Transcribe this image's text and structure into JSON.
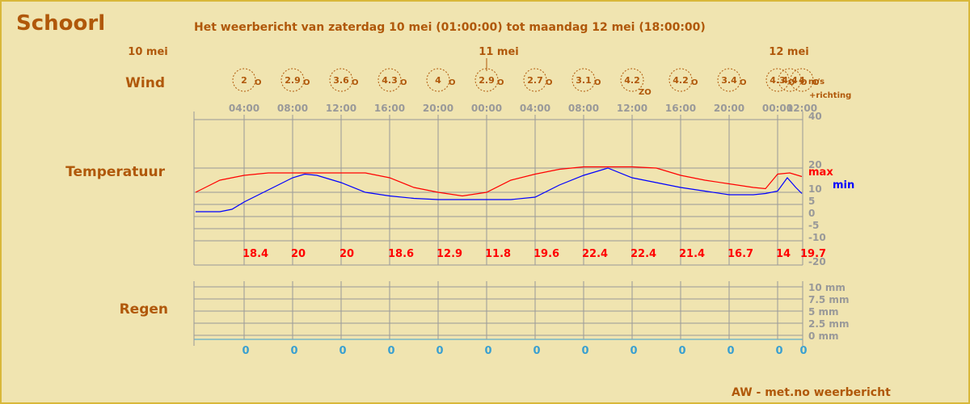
{
  "header": {
    "place": "Schoorl",
    "subtitle": "Het weerbericht van zaterdag 10 mei (01:00:00) tot maandag 12 mei (18:00:00)"
  },
  "footer": "AW - met.no weerbericht",
  "colors": {
    "accent": "#b0580a",
    "max": "#ff0000",
    "min": "#0000ff",
    "rain": "#3aa0d0",
    "grid": "#999999"
  },
  "chart_data": {
    "type": "line",
    "rows": {
      "wind": "Wind",
      "temperature": "Temperatuur",
      "rain": "Regen"
    },
    "day_labels": [
      {
        "label": "10 mei",
        "hour": 0
      },
      {
        "label": "11 mei",
        "hour": 24
      },
      {
        "label": "12 mei",
        "hour": 48
      }
    ],
    "time_ticks": [
      {
        "label": "04:00",
        "hour": 4
      },
      {
        "label": "08:00",
        "hour": 8
      },
      {
        "label": "12:00",
        "hour": 12
      },
      {
        "label": "16:00",
        "hour": 16
      },
      {
        "label": "20:00",
        "hour": 20
      },
      {
        "label": "00:00",
        "hour": 24
      },
      {
        "label": "04:00",
        "hour": 28
      },
      {
        "label": "08:00",
        "hour": 32
      },
      {
        "label": "12:00",
        "hour": 36
      },
      {
        "label": "16:00",
        "hour": 40
      },
      {
        "label": "20:00",
        "hour": 44
      },
      {
        "label": "00:00",
        "hour": 48
      },
      {
        "label": "12:00",
        "hour": 50
      }
    ],
    "wind": {
      "unit_label": "m/s",
      "direction_label": "+richting",
      "points": [
        {
          "hour": 4,
          "speed": "2",
          "dir": "O"
        },
        {
          "hour": 8,
          "speed": "2.9",
          "dir": "O"
        },
        {
          "hour": 12,
          "speed": "3.6",
          "dir": "O"
        },
        {
          "hour": 16,
          "speed": "4.3",
          "dir": "O"
        },
        {
          "hour": 20,
          "speed": "4",
          "dir": "O"
        },
        {
          "hour": 24,
          "speed": "2.9",
          "dir": "O"
        },
        {
          "hour": 28,
          "speed": "2.7",
          "dir": "O"
        },
        {
          "hour": 32,
          "speed": "3.1",
          "dir": "O"
        },
        {
          "hour": 36,
          "speed": "4.2",
          "dir": "ZO"
        },
        {
          "hour": 40,
          "speed": "4.2",
          "dir": "O"
        },
        {
          "hour": 44,
          "speed": "3.4",
          "dir": "O"
        },
        {
          "hour": 48,
          "speed": "4.3",
          "dir": "O"
        },
        {
          "hour": 49,
          "speed": "4.4",
          "dir": "O"
        },
        {
          "hour": 50,
          "speed": "4",
          "dir": "O"
        }
      ]
    },
    "temperature": {
      "ylim": [
        -20,
        40
      ],
      "y_ticks": [
        40,
        20,
        10,
        5,
        0,
        -5,
        -10,
        -20
      ],
      "legend": {
        "max": "max",
        "min": "min"
      },
      "max_series": {
        "name": "max",
        "x": [
          0,
          2,
          4,
          6,
          8,
          10,
          12,
          14,
          16,
          18,
          20,
          22,
          24,
          26,
          28,
          30,
          32,
          34,
          36,
          38,
          40,
          42,
          44,
          46,
          47,
          48,
          49,
          50
        ],
        "values": [
          10,
          15,
          17,
          18,
          18,
          18,
          18,
          18,
          16,
          12,
          10,
          8.5,
          10,
          15,
          17.5,
          19.5,
          20.5,
          20.5,
          20.5,
          20,
          17,
          15,
          13.5,
          12,
          11.5,
          17.5,
          18,
          16.5
        ]
      },
      "min_series": {
        "name": "min",
        "x": [
          0,
          2,
          3,
          4,
          6,
          8,
          9,
          10,
          12,
          14,
          16,
          18,
          20,
          22,
          24,
          26,
          28,
          30,
          32,
          34,
          36,
          38,
          40,
          42,
          44,
          46,
          47,
          48,
          48.8,
          49.5,
          50
        ],
        "values": [
          2,
          2,
          3,
          6,
          11,
          16,
          17.5,
          17,
          14,
          10,
          8.5,
          7.5,
          7,
          7,
          7,
          7,
          8,
          13,
          17,
          20,
          16,
          14,
          12,
          10.5,
          9,
          9,
          9.5,
          10.5,
          16,
          12,
          9.5
        ]
      },
      "max_labels": [
        {
          "hour": 4,
          "value": "18.4"
        },
        {
          "hour": 8,
          "value": "20"
        },
        {
          "hour": 12,
          "value": "20"
        },
        {
          "hour": 16,
          "value": "18.6"
        },
        {
          "hour": 20,
          "value": "12.9"
        },
        {
          "hour": 24,
          "value": "11.8"
        },
        {
          "hour": 28,
          "value": "19.6"
        },
        {
          "hour": 32,
          "value": "22.4"
        },
        {
          "hour": 36,
          "value": "22.4"
        },
        {
          "hour": 40,
          "value": "21.4"
        },
        {
          "hour": 44,
          "value": "16.7"
        },
        {
          "hour": 48,
          "value": "14"
        },
        {
          "hour": 50,
          "value": "19.7"
        }
      ]
    },
    "rain": {
      "ylim": [
        0,
        10
      ],
      "y_ticks": [
        {
          "value": 10,
          "label": "10 mm"
        },
        {
          "value": 7.5,
          "label": "7.5 mm"
        },
        {
          "value": 5,
          "label": "5 mm"
        },
        {
          "value": 2.5,
          "label": "2.5 mm"
        },
        {
          "value": 0,
          "label": "0 mm"
        }
      ],
      "amounts": [
        {
          "hour": 4,
          "value": "0"
        },
        {
          "hour": 8,
          "value": "0"
        },
        {
          "hour": 12,
          "value": "0"
        },
        {
          "hour": 16,
          "value": "0"
        },
        {
          "hour": 20,
          "value": "0"
        },
        {
          "hour": 24,
          "value": "0"
        },
        {
          "hour": 28,
          "value": "0"
        },
        {
          "hour": 32,
          "value": "0"
        },
        {
          "hour": 36,
          "value": "0"
        },
        {
          "hour": 40,
          "value": "0"
        },
        {
          "hour": 44,
          "value": "0"
        },
        {
          "hour": 48,
          "value": "0"
        },
        {
          "hour": 50,
          "value": "0"
        }
      ]
    }
  }
}
